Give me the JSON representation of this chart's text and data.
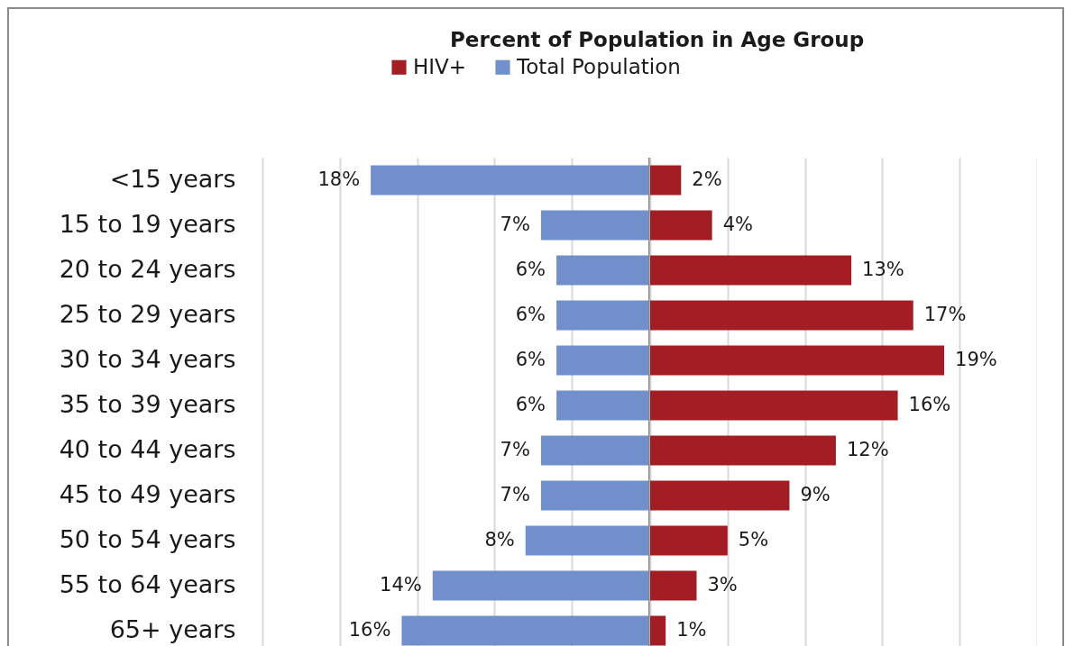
{
  "chart_data": [
    {
      "type": "bar",
      "orientation": "horizontal",
      "title": "Percent of Population in Age Group",
      "categories": [
        "<15 years",
        "15 to 19 years",
        "20 to 24 years",
        "25 to 29 years",
        "30 to 34 years",
        "35 to 39 years",
        "40 to 44 years",
        "45 to 49 years",
        "50 to 54 years",
        "55 to 64 years",
        "65+ years"
      ],
      "series": [
        {
          "name": "Total Population",
          "color": "#7190cb",
          "values": [
            18,
            7,
            6,
            6,
            6,
            6,
            7,
            7,
            8,
            14,
            16
          ],
          "value_labels": [
            "18%",
            "7%",
            "6%",
            "6%",
            "6%",
            "6%",
            "7%",
            "7%",
            "8%",
            "14%",
            "16%"
          ]
        }
      ],
      "xlim": [
        25,
        0
      ],
      "xticks": [
        {
          "value": 25,
          "label": null
        },
        {
          "value": 20,
          "label": null
        },
        {
          "value": 15,
          "label": null
        },
        {
          "value": 10,
          "label": null
        },
        {
          "value": 5,
          "label": null
        },
        {
          "value": 0,
          "label": null
        }
      ],
      "tick_labels": "y",
      "grid": "x",
      "legend": "top",
      "ref_lines": [
        {
          "axis": "x",
          "value": 0,
          "color": "#868686"
        }
      ]
    },
    {
      "type": "bar",
      "orientation": "horizontal",
      "categories": [
        null,
        null,
        null,
        null,
        null,
        null,
        null,
        null,
        null,
        null,
        null
      ],
      "series": [
        {
          "name": "HIV+",
          "color": "#a31d24",
          "values": [
            2,
            4,
            13,
            17,
            19,
            16,
            12,
            9,
            5,
            3,
            1
          ],
          "value_labels": [
            "2%",
            "4%",
            "13%",
            "17%",
            "19%",
            "16%",
            "12%",
            "9%",
            "5%",
            "3%",
            "1%"
          ]
        }
      ],
      "xlim": [
        0,
        25
      ],
      "xticks": [
        {
          "value": 0,
          "label": null
        },
        {
          "value": 5,
          "label": null
        },
        {
          "value": 10,
          "label": null
        },
        {
          "value": 15,
          "label": null
        },
        {
          "value": 20,
          "label": null
        },
        {
          "value": 25,
          "label": null
        }
      ],
      "tick_labels": false,
      "grid": "x",
      "legend": "top"
    }
  ]
}
